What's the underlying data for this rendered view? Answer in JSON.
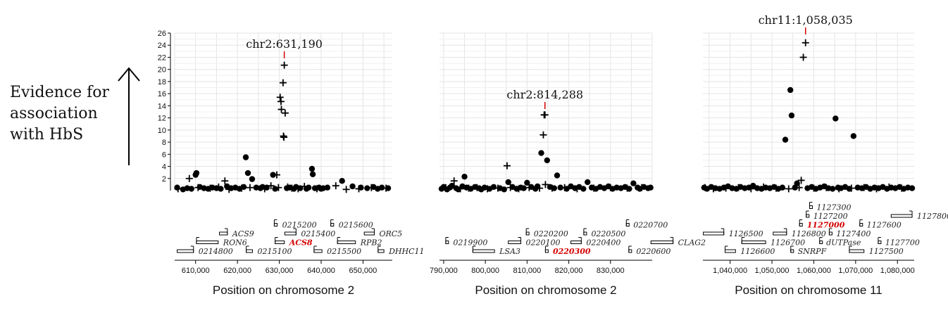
{
  "side_label": [
    "Evidence for",
    "association",
    "with HbS"
  ],
  "chart_data": [
    {
      "type": "scatter",
      "xlabel": "Position on chromosome 2",
      "xlim": [
        605000,
        657000
      ],
      "xticks": [
        610000,
        620000,
        630000,
        640000,
        650000
      ],
      "xtick_labels": [
        "610,000",
        "620,000",
        "630,000",
        "640,000",
        "650,000"
      ],
      "ylim": [
        0,
        26
      ],
      "yticks": [
        2,
        4,
        6,
        8,
        10,
        12,
        14,
        16,
        18,
        20,
        22,
        24,
        26
      ],
      "peak": {
        "label": "chr2:631,190",
        "x": 631190
      },
      "plus": [
        [
          605800,
          0.3
        ],
        [
          608500,
          2.0
        ],
        [
          610600,
          0.5
        ],
        [
          613500,
          0.4
        ],
        [
          615500,
          0.6
        ],
        [
          617000,
          1.6
        ],
        [
          618000,
          0.2
        ],
        [
          621000,
          0.4
        ],
        [
          623000,
          0.5
        ],
        [
          626500,
          0.3
        ],
        [
          628000,
          0.8
        ],
        [
          629800,
          0.5
        ],
        [
          629400,
          2.6
        ],
        [
          630200,
          15.4
        ],
        [
          630400,
          14.7
        ],
        [
          630500,
          13.4
        ],
        [
          630900,
          17.8
        ],
        [
          631000,
          9.0
        ],
        [
          631100,
          8.8
        ],
        [
          631190,
          20.7
        ],
        [
          631400,
          12.8
        ],
        [
          632000,
          0.6
        ],
        [
          633000,
          0.4
        ],
        [
          634500,
          0.3
        ],
        [
          636000,
          0.7
        ],
        [
          639000,
          0.3
        ],
        [
          643500,
          0.8
        ],
        [
          646000,
          0.2
        ],
        [
          649000,
          0.3
        ],
        [
          652000,
          0.5
        ],
        [
          655500,
          0.4
        ]
      ],
      "dots": [
        [
          605600,
          0.5
        ],
        [
          607000,
          0.2
        ],
        [
          608000,
          0.4
        ],
        [
          609000,
          0.3
        ],
        [
          610000,
          2.6
        ],
        [
          610200,
          2.9
        ],
        [
          611000,
          0.6
        ],
        [
          612000,
          0.4
        ],
        [
          613000,
          0.3
        ],
        [
          614000,
          0.5
        ],
        [
          615000,
          0.4
        ],
        [
          616000,
          0.3
        ],
        [
          617500,
          0.7
        ],
        [
          618500,
          0.4
        ],
        [
          619500,
          0.5
        ],
        [
          620500,
          0.3
        ],
        [
          621500,
          0.6
        ],
        [
          622000,
          5.5
        ],
        [
          622500,
          2.9
        ],
        [
          623500,
          1.9
        ],
        [
          624500,
          0.5
        ],
        [
          625500,
          0.4
        ],
        [
          626000,
          0.6
        ],
        [
          627000,
          0.5
        ],
        [
          628500,
          2.6
        ],
        [
          629000,
          0.3
        ],
        [
          631800,
          0.4
        ],
        [
          632500,
          0.5
        ],
        [
          633500,
          0.3
        ],
        [
          634000,
          0.6
        ],
        [
          635000,
          0.4
        ],
        [
          636500,
          0.3
        ],
        [
          637000,
          0.5
        ],
        [
          637800,
          3.6
        ],
        [
          638000,
          2.7
        ],
        [
          638500,
          0.4
        ],
        [
          639500,
          0.5
        ],
        [
          640000,
          0.3
        ],
        [
          640500,
          0.4
        ],
        [
          641500,
          0.5
        ],
        [
          645000,
          1.6
        ],
        [
          647500,
          0.7
        ],
        [
          649500,
          0.5
        ],
        [
          651000,
          0.4
        ],
        [
          652500,
          0.6
        ],
        [
          653500,
          0.3
        ],
        [
          654500,
          0.5
        ],
        [
          656000,
          0.4
        ]
      ],
      "genes": [
        {
          "label": "0215200",
          "start": 628800,
          "end": 629500,
          "dir": 1,
          "row": 3
        },
        {
          "label": "0215600",
          "start": 642300,
          "end": 643000,
          "dir": 1,
          "row": 3
        },
        {
          "label": "ACS9",
          "start": 615700,
          "end": 617600,
          "dir": -1,
          "row": 2
        },
        {
          "label": "0215400",
          "start": 631300,
          "end": 634000,
          "dir": -1,
          "row": 2
        },
        {
          "label": "ORC5",
          "start": 650300,
          "end": 652700,
          "dir": -1,
          "row": 2
        },
        {
          "label": "RON6",
          "start": 610200,
          "end": 615400,
          "dir": 1,
          "row": 1
        },
        {
          "label": "ACS8",
          "start": 629000,
          "end": 631200,
          "dir": 1,
          "row": 1,
          "highlight": true
        },
        {
          "label": "RPB2",
          "start": 643900,
          "end": 648200,
          "dir": 1,
          "row": 1
        },
        {
          "label": "0214800",
          "start": 605600,
          "end": 609500,
          "dir": -1,
          "row": 0
        },
        {
          "label": "0215100",
          "start": 622100,
          "end": 623600,
          "dir": 1,
          "row": 0
        },
        {
          "label": "0215500",
          "start": 638300,
          "end": 640200,
          "dir": 1,
          "row": 0
        },
        {
          "label": "DHHC11",
          "start": 653600,
          "end": 655000,
          "dir": 1,
          "row": 0
        }
      ]
    },
    {
      "type": "scatter",
      "xlabel": "Position on chromosome 2",
      "xlim": [
        789000,
        840000
      ],
      "xticks": [
        790000,
        800000,
        810000,
        820000,
        830000
      ],
      "xtick_labels": [
        "790,000",
        "800,000",
        "810,000",
        "820,000",
        "830,000"
      ],
      "ylim": [
        0,
        26
      ],
      "yticks": [
        2,
        4,
        6,
        8,
        10,
        12,
        14,
        16,
        18,
        20,
        22,
        24,
        26
      ],
      "peak": {
        "label": "chr2:814,288",
        "x": 814288
      },
      "plus": [
        [
          790500,
          0.5
        ],
        [
          792500,
          1.6
        ],
        [
          794000,
          0.3
        ],
        [
          796000,
          0.4
        ],
        [
          798000,
          0.5
        ],
        [
          800500,
          0.3
        ],
        [
          803000,
          0.4
        ],
        [
          805200,
          4.1
        ],
        [
          806000,
          0.5
        ],
        [
          808000,
          0.3
        ],
        [
          810500,
          0.5
        ],
        [
          813000,
          0.4
        ],
        [
          813900,
          9.2
        ],
        [
          814100,
          12.5
        ],
        [
          814288,
          12.5
        ],
        [
          814400,
          1.0
        ],
        [
          816000,
          0.4
        ],
        [
          819000,
          0.5
        ],
        [
          822000,
          0.3
        ],
        [
          826000,
          0.4
        ],
        [
          830000,
          0.5
        ],
        [
          834000,
          0.4
        ],
        [
          837500,
          0.5
        ]
      ],
      "dots": [
        [
          789500,
          0.3
        ],
        [
          790000,
          0.6
        ],
        [
          790800,
          0.2
        ],
        [
          791500,
          0.5
        ],
        [
          792000,
          0.8
        ],
        [
          793000,
          0.4
        ],
        [
          793500,
          0.2
        ],
        [
          794500,
          0.7
        ],
        [
          795000,
          2.3
        ],
        [
          795500,
          0.5
        ],
        [
          796500,
          0.3
        ],
        [
          797500,
          0.6
        ],
        [
          798500,
          0.4
        ],
        [
          799000,
          0.2
        ],
        [
          799800,
          0.5
        ],
        [
          801000,
          0.3
        ],
        [
          802000,
          0.6
        ],
        [
          803500,
          0.4
        ],
        [
          804500,
          0.2
        ],
        [
          805500,
          1.4
        ],
        [
          806500,
          0.6
        ],
        [
          807500,
          0.3
        ],
        [
          808500,
          0.5
        ],
        [
          809200,
          0.4
        ],
        [
          810000,
          1.3
        ],
        [
          811000,
          0.6
        ],
        [
          812000,
          0.3
        ],
        [
          812500,
          0.7
        ],
        [
          813400,
          6.2
        ],
        [
          814800,
          5.0
        ],
        [
          815500,
          0.6
        ],
        [
          816500,
          0.4
        ],
        [
          817200,
          2.5
        ],
        [
          818000,
          0.5
        ],
        [
          819500,
          0.3
        ],
        [
          820500,
          0.7
        ],
        [
          821500,
          0.4
        ],
        [
          822500,
          0.6
        ],
        [
          823500,
          0.3
        ],
        [
          824500,
          1.4
        ],
        [
          825500,
          0.5
        ],
        [
          826500,
          0.3
        ],
        [
          827500,
          0.6
        ],
        [
          828500,
          0.4
        ],
        [
          829500,
          0.7
        ],
        [
          830500,
          0.3
        ],
        [
          831500,
          0.5
        ],
        [
          832500,
          0.4
        ],
        [
          833500,
          0.6
        ],
        [
          834500,
          0.3
        ],
        [
          835500,
          1.2
        ],
        [
          836500,
          0.5
        ],
        [
          837000,
          0.3
        ],
        [
          838000,
          0.6
        ],
        [
          839000,
          0.4
        ],
        [
          839600,
          0.5
        ]
      ],
      "genes": [
        {
          "label": "0220700",
          "start": 833800,
          "end": 834300,
          "dir": 1,
          "row": 3
        },
        {
          "label": "0220200",
          "start": 809800,
          "end": 810400,
          "dir": 1,
          "row": 2
        },
        {
          "label": "0220500",
          "start": 823600,
          "end": 824200,
          "dir": 1,
          "row": 2
        },
        {
          "label": "0219900",
          "start": 790500,
          "end": 791100,
          "dir": 1,
          "row": 1
        },
        {
          "label": "0220100",
          "start": 805500,
          "end": 808500,
          "dir": -1,
          "row": 1
        },
        {
          "label": "0220400",
          "start": 820500,
          "end": 823000,
          "dir": -1,
          "row": 1
        },
        {
          "label": "CLAG2",
          "start": 839700,
          "end": 845000,
          "dir": -1,
          "row": 1
        },
        {
          "label": "LSA3",
          "start": 797000,
          "end": 802200,
          "dir": 1,
          "row": 0
        },
        {
          "label": "0220300",
          "start": 814400,
          "end": 815000,
          "dir": 1,
          "row": 0,
          "highlight": true
        },
        {
          "label": "0220600",
          "start": 834400,
          "end": 835000,
          "dir": 1,
          "row": 0
        }
      ]
    },
    {
      "type": "scatter",
      "xlabel": "Position on chromosome 11",
      "xlim": [
        1033500,
        1084000
      ],
      "xticks": [
        1040000,
        1050000,
        1060000,
        1070000,
        1080000
      ],
      "xtick_labels": [
        "1,040,000",
        "1,050,000",
        "1,060,000",
        "1,070,000",
        "1,080,000"
      ],
      "ylim": [
        0,
        26
      ],
      "yticks": [
        2,
        4,
        6,
        8,
        10,
        12,
        14,
        16,
        18,
        20,
        22,
        24,
        26
      ],
      "peak": {
        "label": "chr11:1,058,035",
        "x": 1058035
      },
      "plus": [
        [
          1034000,
          0.5
        ],
        [
          1036000,
          0.3
        ],
        [
          1039000,
          0.4
        ],
        [
          1042000,
          0.5
        ],
        [
          1045000,
          0.3
        ],
        [
          1048000,
          0.6
        ],
        [
          1051000,
          0.4
        ],
        [
          1054000,
          0.3
        ],
        [
          1056500,
          0.5
        ],
        [
          1057000,
          1.7
        ],
        [
          1057500,
          22.0
        ],
        [
          1058035,
          24.4
        ],
        [
          1060000,
          0.4
        ],
        [
          1063000,
          0.5
        ],
        [
          1066000,
          0.3
        ],
        [
          1069000,
          0.4
        ],
        [
          1072000,
          0.5
        ],
        [
          1075000,
          0.3
        ],
        [
          1078000,
          0.6
        ],
        [
          1081000,
          0.4
        ]
      ],
      "dots": [
        [
          1033800,
          0.5
        ],
        [
          1034500,
          0.3
        ],
        [
          1035500,
          0.6
        ],
        [
          1036500,
          0.4
        ],
        [
          1037500,
          0.3
        ],
        [
          1038500,
          0.5
        ],
        [
          1039500,
          0.7
        ],
        [
          1040500,
          0.4
        ],
        [
          1041500,
          0.3
        ],
        [
          1042500,
          0.6
        ],
        [
          1043500,
          0.4
        ],
        [
          1044500,
          0.5
        ],
        [
          1045500,
          0.8
        ],
        [
          1046500,
          0.4
        ],
        [
          1047500,
          0.3
        ],
        [
          1048500,
          0.5
        ],
        [
          1049500,
          0.4
        ],
        [
          1050500,
          0.6
        ],
        [
          1051500,
          0.3
        ],
        [
          1052500,
          0.5
        ],
        [
          1053200,
          8.4
        ],
        [
          1054400,
          16.6
        ],
        [
          1054700,
          12.4
        ],
        [
          1055500,
          0.5
        ],
        [
          1056000,
          1.2
        ],
        [
          1058500,
          0.4
        ],
        [
          1059500,
          0.6
        ],
        [
          1060500,
          0.3
        ],
        [
          1061500,
          0.5
        ],
        [
          1062500,
          0.7
        ],
        [
          1063500,
          0.4
        ],
        [
          1064500,
          0.3
        ],
        [
          1065200,
          11.9
        ],
        [
          1065800,
          0.5
        ],
        [
          1066500,
          0.4
        ],
        [
          1067500,
          0.6
        ],
        [
          1068500,
          0.3
        ],
        [
          1069500,
          9.0
        ],
        [
          1070500,
          0.5
        ],
        [
          1071500,
          0.4
        ],
        [
          1072500,
          0.6
        ],
        [
          1073500,
          0.3
        ],
        [
          1074500,
          0.5
        ],
        [
          1075500,
          0.4
        ],
        [
          1076500,
          0.6
        ],
        [
          1077500,
          0.3
        ],
        [
          1078500,
          0.5
        ],
        [
          1079500,
          0.4
        ],
        [
          1080500,
          0.6
        ],
        [
          1081500,
          0.3
        ],
        [
          1082500,
          0.5
        ],
        [
          1083500,
          0.4
        ]
      ],
      "genes": [
        {
          "label": "1127300",
          "start": 1059000,
          "end": 1059500,
          "dir": 1,
          "row": 5
        },
        {
          "label": "1127200",
          "start": 1058200,
          "end": 1058700,
          "dir": 1,
          "row": 4
        },
        {
          "label": "1127800",
          "start": 1078500,
          "end": 1083500,
          "dir": -1,
          "row": 4
        },
        {
          "label": "1127000",
          "start": 1056600,
          "end": 1057200,
          "dir": 1,
          "row": 3,
          "highlight": true
        },
        {
          "label": "1127600",
          "start": 1071000,
          "end": 1071500,
          "dir": 1,
          "row": 3
        },
        {
          "label": "1126500",
          "start": 1033600,
          "end": 1038500,
          "dir": -1,
          "row": 2
        },
        {
          "label": "1126800",
          "start": 1050300,
          "end": 1053500,
          "dir": -1,
          "row": 2
        },
        {
          "label": "1127400",
          "start": 1063700,
          "end": 1064200,
          "dir": 1,
          "row": 2
        },
        {
          "label": "1126700",
          "start": 1042800,
          "end": 1048500,
          "dir": 1,
          "row": 1
        },
        {
          "label": "dUTPase",
          "start": 1061400,
          "end": 1061800,
          "dir": 1,
          "row": 1
        },
        {
          "label": "1127700",
          "start": 1075400,
          "end": 1075900,
          "dir": 1,
          "row": 1
        },
        {
          "label": "1126600",
          "start": 1038800,
          "end": 1041300,
          "dir": 1,
          "row": 0
        },
        {
          "label": "SNRPF",
          "start": 1054500,
          "end": 1055000,
          "dir": 1,
          "row": 0
        },
        {
          "label": "1127500",
          "start": 1068500,
          "end": 1072000,
          "dir": 1,
          "row": 0
        }
      ]
    }
  ]
}
